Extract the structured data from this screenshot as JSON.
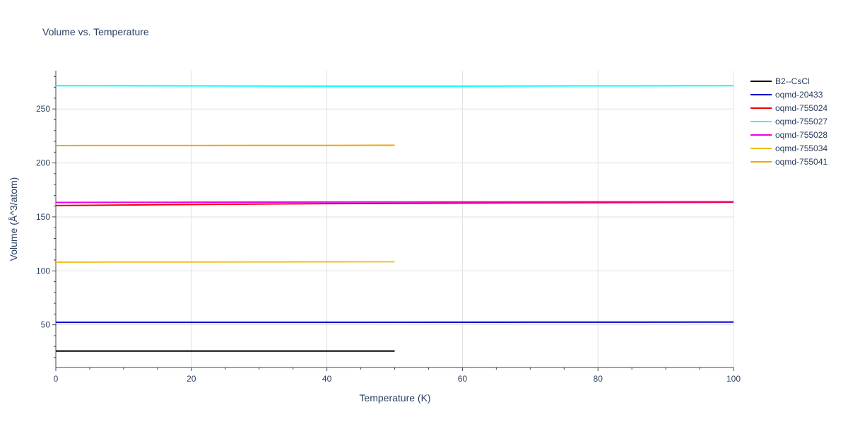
{
  "chart_data": {
    "type": "line",
    "title": "Volume vs. Temperature",
    "xlabel": "Temperature (K)",
    "ylabel": "Volume (Å^3/atom)",
    "xlim": [
      0,
      100
    ],
    "ylim": [
      10.5,
      285.5
    ],
    "x_ticks": [
      0,
      20,
      40,
      60,
      80,
      100
    ],
    "y_ticks": [
      50,
      100,
      150,
      200,
      250
    ],
    "grid": true,
    "legend_position": "right",
    "series": [
      {
        "name": "B2--CsCl",
        "color": "#000000",
        "x": [
          0,
          10,
          20,
          30,
          40,
          50
        ],
        "y": [
          25.7,
          25.7,
          25.7,
          25.7,
          25.7,
          25.7
        ]
      },
      {
        "name": "oqmd-20433",
        "color": "#0000cc",
        "x": [
          0,
          20,
          40,
          60,
          80,
          100
        ],
        "y": [
          52.3,
          52.3,
          52.3,
          52.4,
          52.5,
          52.6
        ]
      },
      {
        "name": "oqmd-755024",
        "color": "#ee0000",
        "x": [
          0,
          20,
          40,
          60,
          80,
          100
        ],
        "y": [
          160.5,
          161.5,
          162.3,
          162.8,
          163.2,
          163.6
        ]
      },
      {
        "name": "oqmd-755027",
        "color": "#00ffff",
        "x": [
          0,
          20,
          40,
          60,
          80,
          100
        ],
        "y": [
          271.6,
          271.4,
          271.2,
          271.2,
          271.4,
          271.6
        ]
      },
      {
        "name": "oqmd-755028",
        "color": "#ee00ee",
        "x": [
          0,
          20,
          40,
          60,
          80,
          100
        ],
        "y": [
          163.4,
          163.6,
          163.8,
          163.9,
          164.0,
          164.1
        ]
      },
      {
        "name": "oqmd-755034",
        "color": "#f0c020",
        "x": [
          0,
          10,
          20,
          30,
          40,
          50
        ],
        "y": [
          108.1,
          108.2,
          108.2,
          108.3,
          108.4,
          108.5
        ]
      },
      {
        "name": "oqmd-755041",
        "color": "#f5a300",
        "x": [
          0,
          10,
          20,
          30,
          40,
          50
        ],
        "y": [
          216.1,
          216.2,
          216.2,
          216.3,
          216.3,
          216.4
        ]
      }
    ]
  }
}
